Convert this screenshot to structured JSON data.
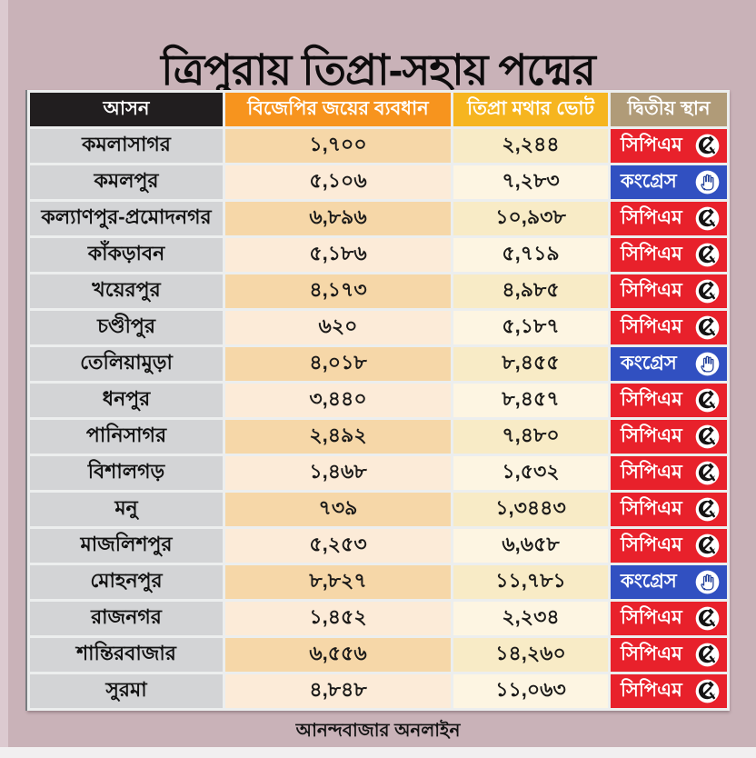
{
  "page": {
    "title": "ত্রিপুরায় তিপ্রা-সহায় পদ্মের",
    "source": "আনন্দবাজার অনলাইন",
    "colors": {
      "page_bg": "#c9b2b8",
      "left_strip": "#dccad0",
      "grid_line": "#eceeee",
      "seat_bg": "#d3d4d6",
      "margin_odd": "#f6d7a8",
      "margin_even": "#fcebd8",
      "votes_odd": "#f8ebc6",
      "votes_even": "#fdf5e2",
      "bottom_strip": "#f1eff0"
    }
  },
  "table": {
    "headers": [
      {
        "label": "আসন",
        "bg": "#211e1f"
      },
      {
        "label": "বিজেপির জয়ের ব্যবধান",
        "bg": "#f7941e"
      },
      {
        "label": "তিপ্রা মথার ভোট",
        "bg": "#f6b51f"
      },
      {
        "label": "দ্বিতীয় স্থান",
        "bg": "#b09b78"
      }
    ],
    "parties": {
      "cpm": {
        "label": "সিপিএম",
        "color": "#e8212b",
        "icon": "hammer-sickle-icon"
      },
      "congress": {
        "label": "কংগ্রেস",
        "color": "#3150c1",
        "icon": "hand-icon"
      }
    },
    "rows": [
      {
        "seat": "কমলাসাগর",
        "bjp_margin": "১,৭০০",
        "tipra_votes": "২,২৪৪",
        "second": "cpm"
      },
      {
        "seat": "কমলপুর",
        "bjp_margin": "৫,১০৬",
        "tipra_votes": "৭,২৮৩",
        "second": "congress"
      },
      {
        "seat": "কল্যাণপুর-প্রমোদনগর",
        "bjp_margin": "৬,৮৯৬",
        "tipra_votes": "১০,৯৩৮",
        "second": "cpm"
      },
      {
        "seat": "কাঁকড়াবন",
        "bjp_margin": "৫,১৮৬",
        "tipra_votes": "৫,৭১৯",
        "second": "cpm"
      },
      {
        "seat": "খয়েরপুর",
        "bjp_margin": "৪,১৭৩",
        "tipra_votes": "৪,৯৮৫",
        "second": "cpm"
      },
      {
        "seat": "চণ্ডীপুর",
        "bjp_margin": "৬২০",
        "tipra_votes": "৫,১৮৭",
        "second": "cpm"
      },
      {
        "seat": "তেলিয়ামুড়া",
        "bjp_margin": "৪,০১৮",
        "tipra_votes": "৮,৪৫৫",
        "second": "congress"
      },
      {
        "seat": "ধনপুর",
        "bjp_margin": "৩,৪৪০",
        "tipra_votes": "৮,৪৫৭",
        "second": "cpm"
      },
      {
        "seat": "পানিসাগর",
        "bjp_margin": "২,৪৯২",
        "tipra_votes": "৭,৪৮০",
        "second": "cpm"
      },
      {
        "seat": "বিশালগড়",
        "bjp_margin": "১,৪৬৮",
        "tipra_votes": "১,৫৩২",
        "second": "cpm"
      },
      {
        "seat": "মনু",
        "bjp_margin": "৭৩৯",
        "tipra_votes": "১,৩৪৪৩",
        "second": "cpm"
      },
      {
        "seat": "মাজলিশপুর",
        "bjp_margin": "৫,২৫৩",
        "tipra_votes": "৬,৬৫৮",
        "second": "cpm"
      },
      {
        "seat": "মোহনপুর",
        "bjp_margin": "৮,৮২৭",
        "tipra_votes": "১১,৭৮১",
        "second": "congress"
      },
      {
        "seat": "রাজনগর",
        "bjp_margin": "১,৪৫২",
        "tipra_votes": "২,২৩৪",
        "second": "cpm"
      },
      {
        "seat": "শান্তিরবাজার",
        "bjp_margin": "৬,৫৫৬",
        "tipra_votes": "১৪,২৬০",
        "second": "cpm"
      },
      {
        "seat": "সুরমা",
        "bjp_margin": "৪,৮৪৮",
        "tipra_votes": "১১,০৬৩",
        "second": "cpm"
      }
    ]
  },
  "chart_data": {
    "type": "table",
    "title": "ত্রিপুরায় তিপ্রা-সহায় পদ্মের",
    "source": "আনন্দবাজার অনলাইন",
    "columns": [
      "আসন",
      "বিজেপির জয়ের ব্যবধান",
      "তিপ্রা মথার ভোট",
      "দ্বিতীয় স্থান"
    ],
    "rows": [
      [
        "কমলাসাগর",
        "১,৭০০",
        "২,২৪৪",
        "সিপিএম"
      ],
      [
        "কমলপুর",
        "৫,১০৬",
        "৭,২৮৩",
        "কংগ্রেস"
      ],
      [
        "কল্যাণপুর-প্রমোদনগর",
        "৬,৮৯৬",
        "১০,৯৩৮",
        "সিপিএম"
      ],
      [
        "কাঁকড়াবন",
        "৫,১৮৬",
        "৫,৭১৯",
        "সিপিএম"
      ],
      [
        "খয়েরপুর",
        "৪,১৭৩",
        "৪,৯৮৫",
        "সিপিএম"
      ],
      [
        "চণ্ডীপুর",
        "৬২০",
        "৫,১৮৭",
        "সিপিএম"
      ],
      [
        "তেলিয়ামুড়া",
        "৪,০১৮",
        "৮,৪৫৫",
        "কংগ্রেস"
      ],
      [
        "ধনপুর",
        "৩,৪৪০",
        "৮,৪৫৭",
        "সিপিএম"
      ],
      [
        "পানিসাগর",
        "২,৪৯২",
        "৭,৪৮০",
        "সিপিএম"
      ],
      [
        "বিশালগড়",
        "১,৪৬৮",
        "১,৫৩২",
        "সিপিএম"
      ],
      [
        "মনু",
        "৭৩৯",
        "১,৩৪৪৩",
        "সিপিএম"
      ],
      [
        "মাজলিশপুর",
        "৫,২৫৩",
        "৬,৬৫৮",
        "সিপিএম"
      ],
      [
        "মোহনপুর",
        "৮,৮২৭",
        "১১,৭৮১",
        "কংগ্রেস"
      ],
      [
        "রাজনগর",
        "১,৪৫২",
        "২,২৩৪",
        "সিপিএম"
      ],
      [
        "শান্তিরবাজার",
        "৬,৫৫৬",
        "১৪,২৬০",
        "সিপিএম"
      ],
      [
        "সুরমা",
        "৪,৮৪৮",
        "১১,০৬৩",
        "সিপিএম"
      ]
    ],
    "rows_numeric": [
      [
        1700,
        2244
      ],
      [
        5106,
        7283
      ],
      [
        6896,
        10938
      ],
      [
        5186,
        5719
      ],
      [
        4173,
        4985
      ],
      [
        620,
        5187
      ],
      [
        4018,
        8455
      ],
      [
        3440,
        8457
      ],
      [
        2492,
        7480
      ],
      [
        1468,
        1532
      ],
      [
        739,
        13443
      ],
      [
        5253,
        6658
      ],
      [
        8827,
        11781
      ],
      [
        1452,
        2234
      ],
      [
        6556,
        14260
      ],
      [
        4848,
        11063
      ]
    ]
  }
}
